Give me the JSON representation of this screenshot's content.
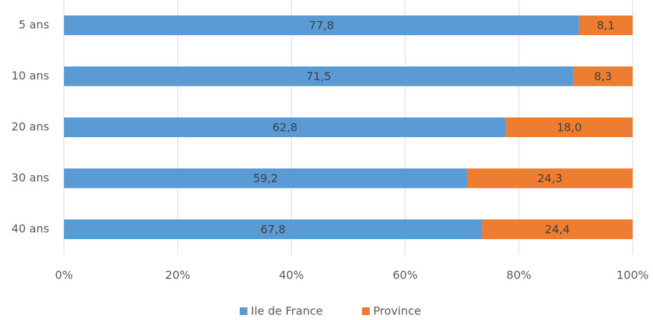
{
  "chart_data": {
    "type": "bar",
    "orientation": "horizontal",
    "stacking": "percent",
    "categories": [
      "5 ans",
      "10 ans",
      "20 ans",
      "30 ans",
      "40 ans"
    ],
    "series": [
      {
        "name": "Ile de France",
        "color": "#5b9bd5",
        "values": [
          77.8,
          71.5,
          62.8,
          59.2,
          67.8
        ],
        "value_labels": [
          "77,8",
          "71,5",
          "62,8",
          "59,2",
          "67,8"
        ]
      },
      {
        "name": "Province",
        "color": "#ed7d31",
        "values": [
          8.1,
          8.3,
          18.0,
          24.3,
          24.4
        ],
        "value_labels": [
          "8,1",
          "8,3",
          "18,0",
          "24,3",
          "24,4"
        ]
      }
    ],
    "xlim": [
      0,
      100
    ],
    "xticks": [
      {
        "value": 0,
        "label": "0%"
      },
      {
        "value": 20,
        "label": "20%"
      },
      {
        "value": 40,
        "label": "40%"
      },
      {
        "value": 60,
        "label": "60%"
      },
      {
        "value": 80,
        "label": "80%"
      },
      {
        "value": 100,
        "label": "100%"
      }
    ],
    "grid": true,
    "legend": "bottom"
  }
}
